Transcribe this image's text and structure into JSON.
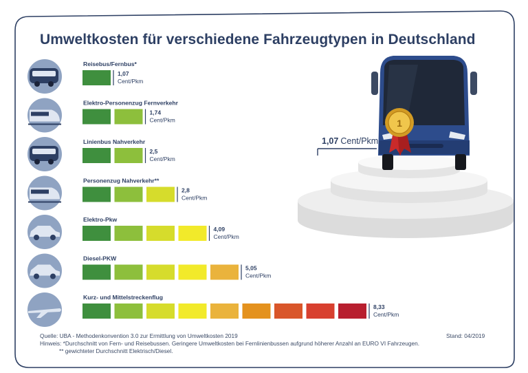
{
  "title": "Umweltkosten für verschiedene Fahrzeugtypen in Deutschland",
  "unit": "Cent/Pkm",
  "winner": {
    "value": "1,07",
    "unit": "Cent/Pkm"
  },
  "footer": {
    "source": "Quelle: UBA - Methodenkonvention 3.0 zur Ermittlung von Umweltkosten 2019",
    "note1": "Hinweis: *Durchschnitt von Fern- und Reisebussen. Geringere Umweltkosten bei Fernlinienbussen aufgrund höherer Anzahl an EURO VI Fahrzeugen.",
    "note2": "** gewichteter Durchschnitt Elektrisch/Diesel.",
    "stand": "Stand: 04/2019"
  },
  "colors": {
    "navy": "#2d3f63",
    "icon_bg": "#8fa3c2",
    "scale": [
      "#3f8f3e",
      "#8dbf3c",
      "#d6dc2c",
      "#f2ea2a",
      "#eab33c",
      "#e4921e",
      "#d9562a",
      "#d8402f",
      "#b81f2f"
    ]
  },
  "chart_data": {
    "type": "bar",
    "title": "Umweltkosten für verschiedene Fahrzeugtypen in Deutschland",
    "unit": "Cent/Pkm",
    "categories": [
      "Reisebus/Fernbus*",
      "Elektro-Personenzug Fernverkehr",
      "Linienbus Nahverkehr",
      "Personenzug Nahverkehr**",
      "Elektro-Pkw",
      "Diesel-PKW",
      "Kurz- und Mittelstreckenflug"
    ],
    "values": [
      1.07,
      1.74,
      2.5,
      2.8,
      4.09,
      5.05,
      8.33
    ],
    "value_labels": [
      "1,07",
      "1,74",
      "2,5",
      "2,8",
      "4,09",
      "5,05",
      "8,33"
    ],
    "segments": [
      1,
      2,
      2,
      3,
      4,
      5,
      9
    ],
    "icons": [
      "coach-bus-icon",
      "high-speed-train-icon",
      "city-bus-icon",
      "regional-train-icon",
      "electric-car-icon",
      "diesel-car-icon",
      "airplane-icon"
    ]
  }
}
